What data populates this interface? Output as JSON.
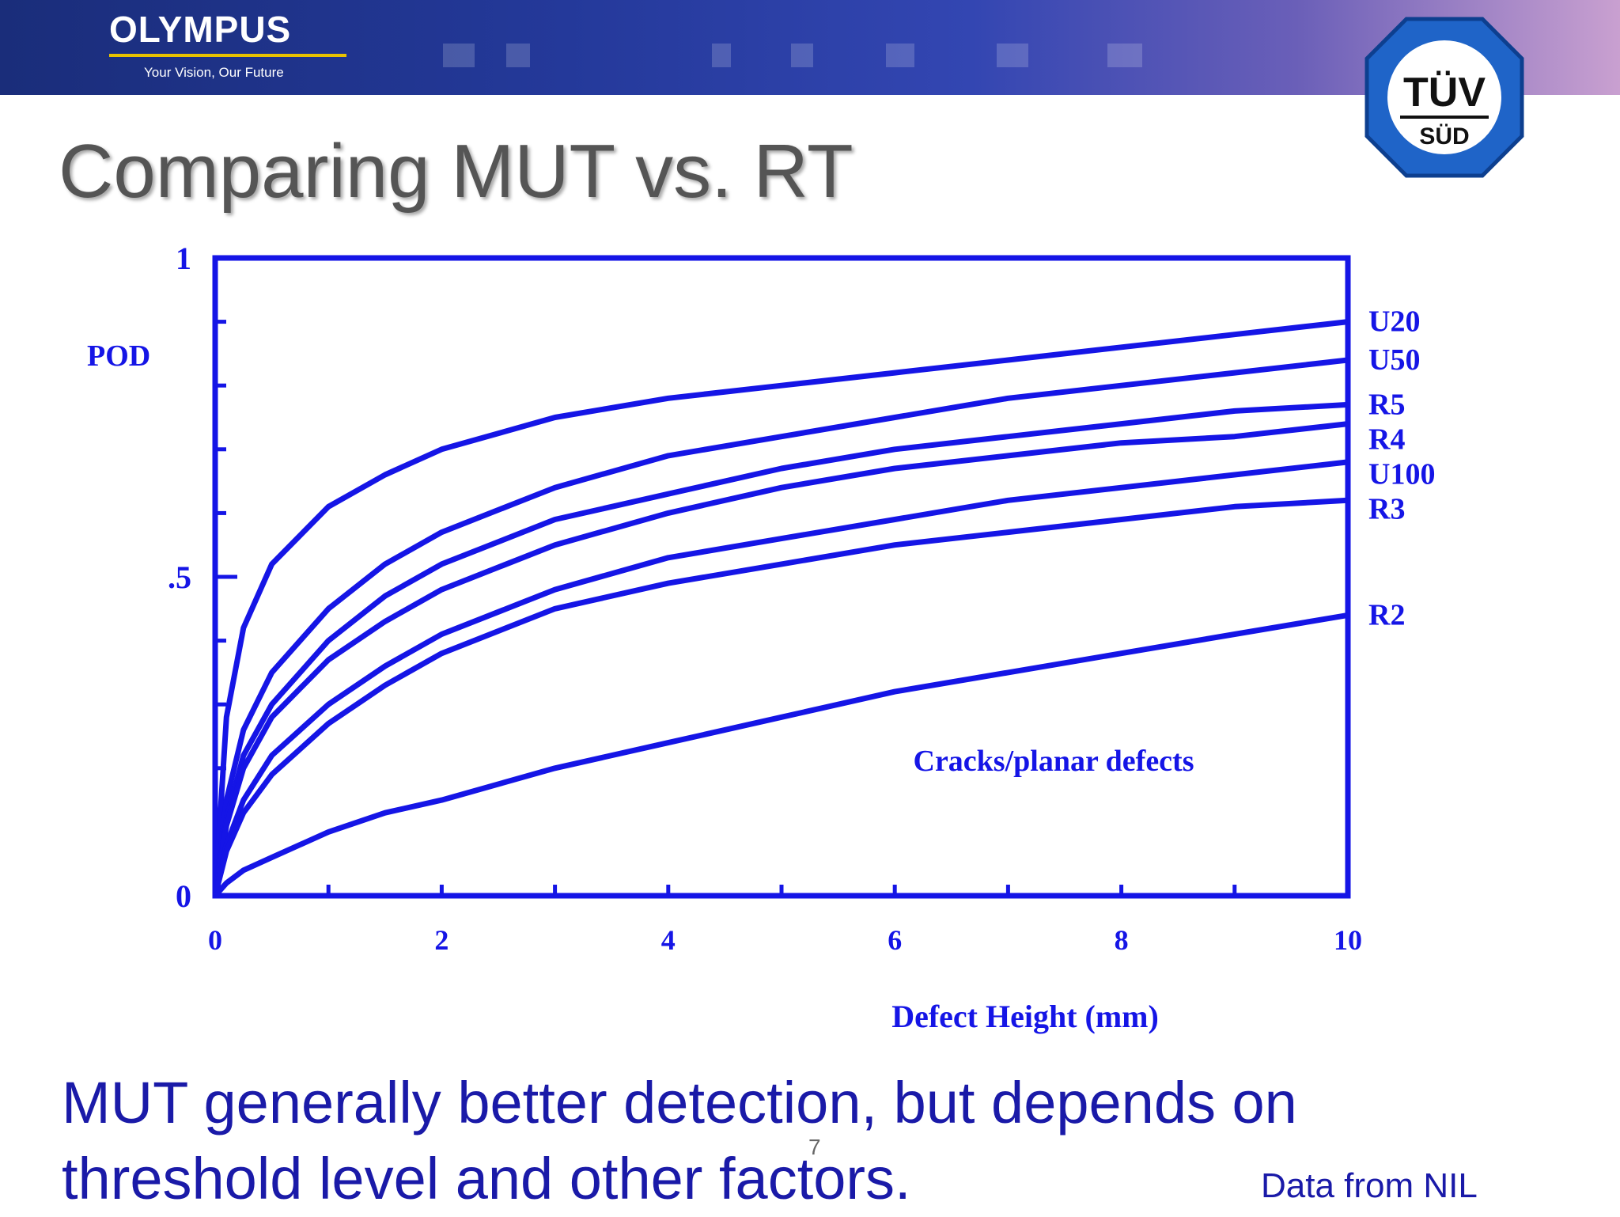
{
  "header": {
    "brand": "OLYMPUS",
    "tagline": "Your Vision, Our Future",
    "seal_text_top": "TÜV",
    "seal_text_bottom": "SÜD"
  },
  "slide": {
    "title": "Comparing MUT vs. RT",
    "caption": "MUT generally better detection, but depends on threshold level  and other factors.",
    "page_number": "7",
    "source_note": "Data from NIL"
  },
  "colors": {
    "chart_blue": "#1515e6",
    "text_blue": "#1a1aa8",
    "title_gray": "#555555"
  },
  "chart_data": {
    "type": "line",
    "title": "",
    "xlabel": "Defect Height (mm)",
    "ylabel": "POD",
    "xlim": [
      0,
      10
    ],
    "ylim": [
      0,
      1
    ],
    "x_ticks": [
      0,
      2,
      4,
      6,
      8,
      10
    ],
    "x_tick_labels": [
      "0",
      "2",
      "4",
      "6",
      "8",
      "10"
    ],
    "y_ticks": [
      0,
      0.5,
      1
    ],
    "y_tick_labels": [
      "0",
      ".5",
      "1"
    ],
    "annotation": "Cracks/planar defects",
    "grid": false,
    "x": [
      0,
      0.1,
      0.25,
      0.5,
      1,
      1.5,
      2,
      3,
      4,
      5,
      6,
      7,
      8,
      9,
      10
    ],
    "series": [
      {
        "name": "U20",
        "values": [
          0,
          0.28,
          0.42,
          0.52,
          0.61,
          0.66,
          0.7,
          0.75,
          0.78,
          0.8,
          0.82,
          0.84,
          0.86,
          0.88,
          0.9
        ]
      },
      {
        "name": "U50",
        "values": [
          0,
          0.15,
          0.26,
          0.35,
          0.45,
          0.52,
          0.57,
          0.64,
          0.69,
          0.72,
          0.75,
          0.78,
          0.8,
          0.82,
          0.84
        ]
      },
      {
        "name": "R5",
        "values": [
          0,
          0.12,
          0.22,
          0.3,
          0.4,
          0.47,
          0.52,
          0.59,
          0.63,
          0.67,
          0.7,
          0.72,
          0.74,
          0.76,
          0.77
        ]
      },
      {
        "name": "R4",
        "values": [
          0,
          0.11,
          0.2,
          0.28,
          0.37,
          0.43,
          0.48,
          0.55,
          0.6,
          0.64,
          0.67,
          0.69,
          0.71,
          0.72,
          0.74
        ]
      },
      {
        "name": "U100",
        "values": [
          0,
          0.08,
          0.15,
          0.22,
          0.3,
          0.36,
          0.41,
          0.48,
          0.53,
          0.56,
          0.59,
          0.62,
          0.64,
          0.66,
          0.68
        ]
      },
      {
        "name": "R3",
        "values": [
          0,
          0.07,
          0.13,
          0.19,
          0.27,
          0.33,
          0.38,
          0.45,
          0.49,
          0.52,
          0.55,
          0.57,
          0.59,
          0.61,
          0.62
        ]
      },
      {
        "name": "R2",
        "values": [
          0,
          0.02,
          0.04,
          0.06,
          0.1,
          0.13,
          0.15,
          0.2,
          0.24,
          0.28,
          0.32,
          0.35,
          0.38,
          0.41,
          0.44
        ]
      }
    ]
  }
}
